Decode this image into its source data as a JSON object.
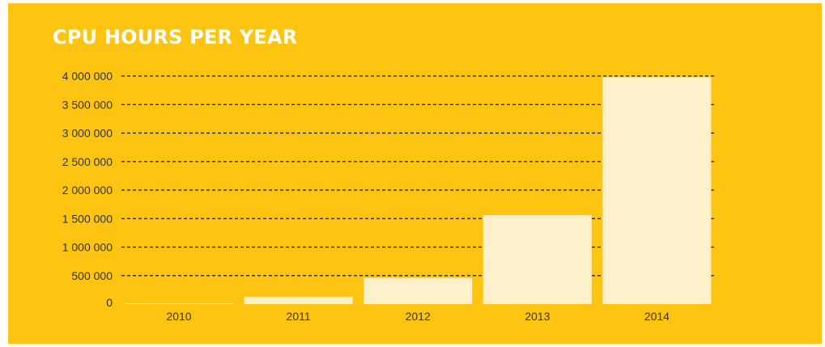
{
  "chart_data": {
    "type": "bar",
    "title": "CPU HOURS PER YEAR",
    "categories": [
      "2010",
      "2011",
      "2012",
      "2013",
      "2014"
    ],
    "values": [
      15000,
      130000,
      460000,
      1560000,
      3980000
    ],
    "ylim": [
      0,
      4000000
    ],
    "yticks": [
      0,
      500000,
      1000000,
      1500000,
      2000000,
      2500000,
      3000000,
      3500000,
      4000000
    ],
    "ytick_labels": [
      "0",
      "500 000",
      "1 000 000",
      "1 500 000",
      "2 000 000",
      "2 500 000",
      "3 000 000",
      "3 500 000",
      "4 000 000"
    ],
    "grid": true,
    "grid_style": "dashed",
    "colors": {
      "background": "#FEC412",
      "bar": "#FDF0CA",
      "grid": "#1a1a1a",
      "title": "#ffffff",
      "text": "#333333"
    }
  }
}
